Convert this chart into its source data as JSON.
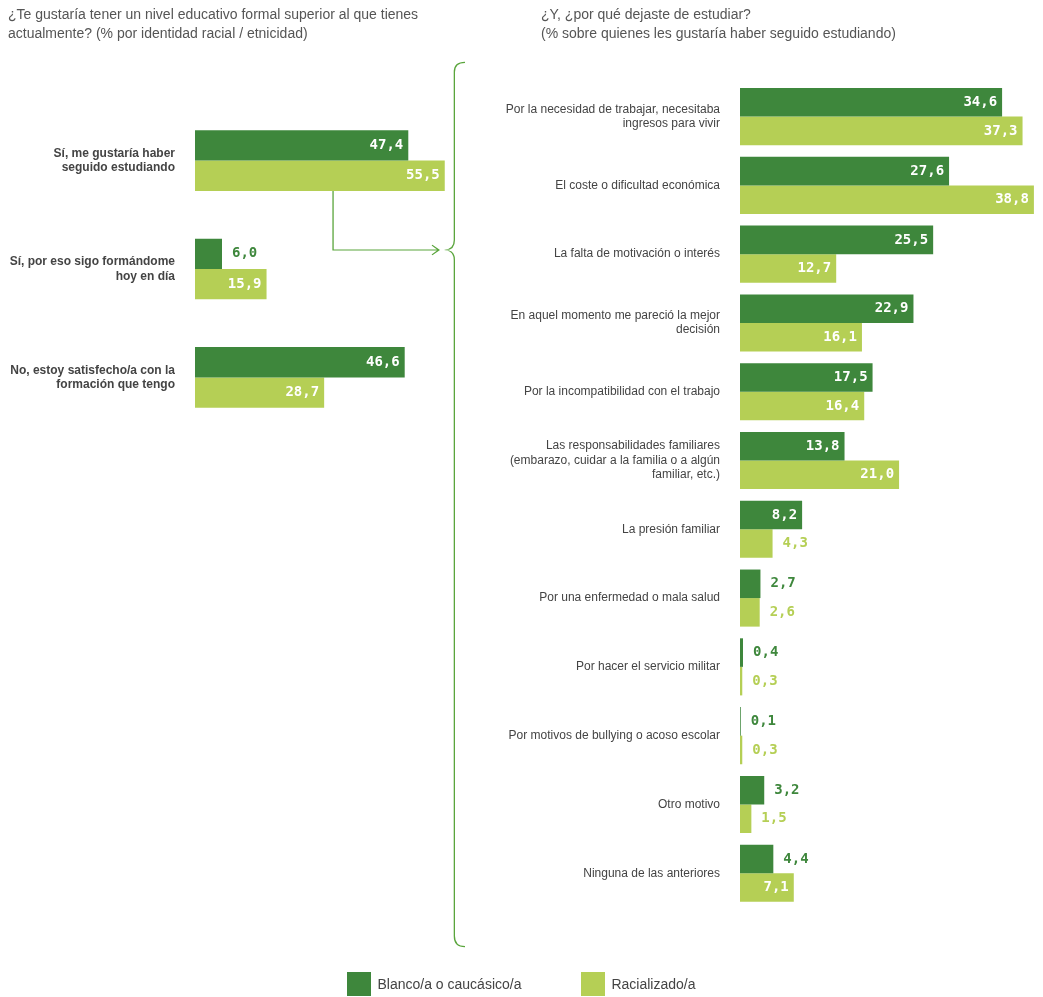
{
  "chart_data": [
    {
      "type": "bar",
      "orientation": "horizontal",
      "title": "¿Te gustaría tener un nivel educativo formal superior al que tienes actualmente? (% por identidad racial / etnicidad)",
      "categories": [
        "Sí, me gustaría haber seguido estudiando",
        "Sí, por eso sigo formándome hoy en día",
        "No, estoy satisfecho/a con la formación que tengo"
      ],
      "series": [
        {
          "name": "Blanco/a o caucásico/a",
          "color": "#3e873c",
          "values": [
            47.4,
            6.0,
            46.6
          ],
          "value_labels": [
            "47,4",
            "6,0",
            "46,6"
          ]
        },
        {
          "name": "Racializado/a",
          "color": "#b5cf55",
          "values": [
            55.5,
            15.9,
            28.7
          ],
          "value_labels": [
            "55,5",
            "15,9",
            "28,7"
          ]
        }
      ],
      "tick_labels": "y",
      "legend": "bottom"
    },
    {
      "type": "bar",
      "orientation": "horizontal",
      "title": "¿Y, ¿por qué dejaste de estudiar?",
      "subtitle": "(% sobre quienes les gustaría haber seguido estudiando)",
      "categories": [
        "Por la necesidad de trabajar, necesitaba ingresos para vivir",
        "El coste o dificultad económica",
        "La falta de motivación o interés",
        "En aquel momento me pareció la mejor decisión",
        "Por la incompatibilidad con el trabajo",
        "Las responsabilidades familiares (embarazo, cuidar a la familia o a algún familiar, etc.)",
        "La presión familiar",
        "Por una enfermedad o mala salud",
        "Por hacer el servicio militar",
        "Por motivos de bullying o acoso escolar",
        "Otro motivo",
        "Ninguna de las anteriores"
      ],
      "series": [
        {
          "color": "#3e873c",
          "values": [
            34.6,
            27.6,
            25.5,
            22.9,
            17.5,
            13.8,
            8.2,
            2.7,
            0.4,
            0.1,
            3.2,
            4.4
          ],
          "value_labels": [
            "34,6",
            "27,6",
            "25,5",
            "22,9",
            "17,5",
            "13,8",
            "8,2",
            "2,7",
            "0,4",
            "0,1",
            "3,2",
            "4,4"
          ]
        },
        {
          "color": "#b5cf55",
          "values": [
            37.3,
            38.8,
            12.7,
            16.1,
            16.4,
            21.0,
            4.3,
            2.6,
            0.3,
            0.3,
            1.5,
            7.1
          ],
          "value_labels": [
            "37,3",
            "38,8",
            "12,7",
            "16,1",
            "16,4",
            "21,0",
            "4,3",
            "2,6",
            "0,3",
            "0,3",
            "1,5",
            "7,1"
          ]
        }
      ],
      "tick_labels": "y",
      "legend": false
    }
  ]
}
